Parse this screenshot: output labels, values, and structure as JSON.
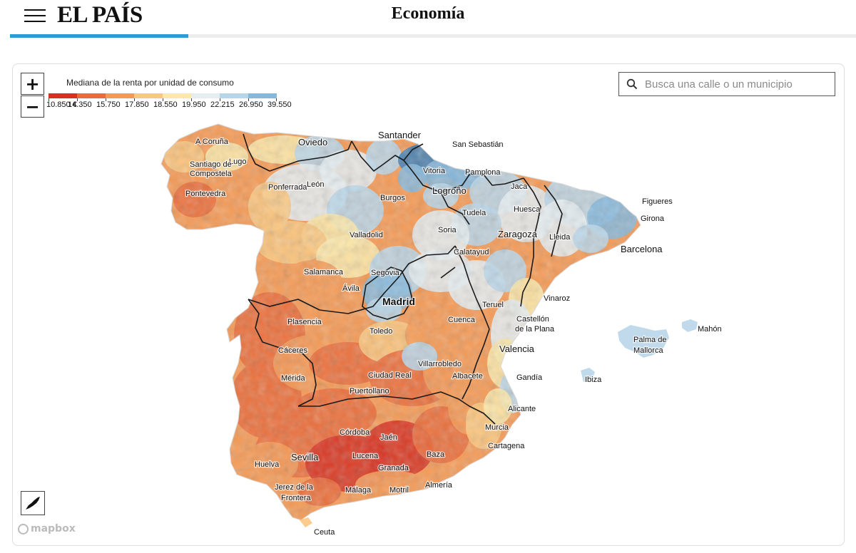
{
  "header": {
    "logo": "EL PAÍS",
    "section": "Economía",
    "accent_color": "#2c9bd6"
  },
  "map": {
    "legend": {
      "title": "Mediana de la renta por unidad de consumo",
      "breaks": [
        "10.850 €",
        "14.350",
        "15.750",
        "17.850",
        "18.550",
        "19.950",
        "22.215",
        "26.950",
        "39.550"
      ],
      "colors": [
        "#d7301f",
        "#ea6b3a",
        "#f59a55",
        "#fbc77e",
        "#fce8a8",
        "#e6edf1",
        "#b9d6e9",
        "#86b8db",
        "#3f7fb6"
      ]
    },
    "zoom_in_label": "+",
    "zoom_out_label": "−",
    "search": {
      "placeholder": "Busca una calle o un municipio",
      "value": ""
    },
    "attribution": "mapbox",
    "icons": {
      "menu": "hamburger-menu-icon",
      "search": "search-icon",
      "canary": "canary-islands-icon",
      "attribution": "mapbox-logo-icon"
    },
    "cities": [
      {
        "name": "A Coruña",
        "kind": "city"
      },
      {
        "name": "Oviedo",
        "kind": "big"
      },
      {
        "name": "Santander",
        "kind": "big"
      },
      {
        "name": "San Sebastián",
        "kind": "city"
      },
      {
        "name": "Lugo",
        "kind": "city"
      },
      {
        "name": "Santiago de",
        "kind": "city"
      },
      {
        "name": "Compostela",
        "kind": "city"
      },
      {
        "name": "Vitoria",
        "kind": "city"
      },
      {
        "name": "Pamplona",
        "kind": "city"
      },
      {
        "name": "Pontevedra",
        "kind": "city"
      },
      {
        "name": "Ponferrada",
        "kind": "small"
      },
      {
        "name": "León",
        "kind": "city"
      },
      {
        "name": "Logroño",
        "kind": "big"
      },
      {
        "name": "Jaca",
        "kind": "small"
      },
      {
        "name": "Figueres",
        "kind": "city"
      },
      {
        "name": "Burgos",
        "kind": "city"
      },
      {
        "name": "Huesca",
        "kind": "city"
      },
      {
        "name": "Tudela",
        "kind": "small"
      },
      {
        "name": "Girona",
        "kind": "city"
      },
      {
        "name": "Soria",
        "kind": "city"
      },
      {
        "name": "Valladolid",
        "kind": "city"
      },
      {
        "name": "Zaragoza",
        "kind": "big"
      },
      {
        "name": "Lleida",
        "kind": "city"
      },
      {
        "name": "Barcelona",
        "kind": "big"
      },
      {
        "name": "Calatayud",
        "kind": "small"
      },
      {
        "name": "Salamanca",
        "kind": "city"
      },
      {
        "name": "Segovia",
        "kind": "city"
      },
      {
        "name": "Ávila",
        "kind": "city"
      },
      {
        "name": "Vinaroz",
        "kind": "small"
      },
      {
        "name": "Madrid",
        "kind": "capital"
      },
      {
        "name": "Teruel",
        "kind": "city"
      },
      {
        "name": "Plasencia",
        "kind": "small"
      },
      {
        "name": "Cuenca",
        "kind": "city"
      },
      {
        "name": "Castellón",
        "kind": "city"
      },
      {
        "name": "de la Plana",
        "kind": "city"
      },
      {
        "name": "Mahón",
        "kind": "small"
      },
      {
        "name": "Toledo",
        "kind": "city"
      },
      {
        "name": "Palma de",
        "kind": "city"
      },
      {
        "name": "Mallorca",
        "kind": "city"
      },
      {
        "name": "Cáceres",
        "kind": "city"
      },
      {
        "name": "Valencia",
        "kind": "big"
      },
      {
        "name": "Villarrobledo",
        "kind": "city"
      },
      {
        "name": "Mérida",
        "kind": "city"
      },
      {
        "name": "Ciudad Real",
        "kind": "city"
      },
      {
        "name": "Albacete",
        "kind": "city"
      },
      {
        "name": "Gandía",
        "kind": "city"
      },
      {
        "name": "Ibiza",
        "kind": "small"
      },
      {
        "name": "Puertollano",
        "kind": "small"
      },
      {
        "name": "Alicante",
        "kind": "city"
      },
      {
        "name": "Córdoba",
        "kind": "city"
      },
      {
        "name": "Murcia",
        "kind": "city"
      },
      {
        "name": "Jaén",
        "kind": "city"
      },
      {
        "name": "Cartagena",
        "kind": "city"
      },
      {
        "name": "Sevilla",
        "kind": "big"
      },
      {
        "name": "Lucena",
        "kind": "small"
      },
      {
        "name": "Baza",
        "kind": "small"
      },
      {
        "name": "Huelva",
        "kind": "city"
      },
      {
        "name": "Granada",
        "kind": "city"
      },
      {
        "name": "Jerez de la",
        "kind": "city"
      },
      {
        "name": "Frontera",
        "kind": "city"
      },
      {
        "name": "Almería",
        "kind": "city"
      },
      {
        "name": "Málaga",
        "kind": "city"
      },
      {
        "name": "Motril",
        "kind": "city"
      },
      {
        "name": "Ceuta",
        "kind": "city"
      }
    ]
  }
}
